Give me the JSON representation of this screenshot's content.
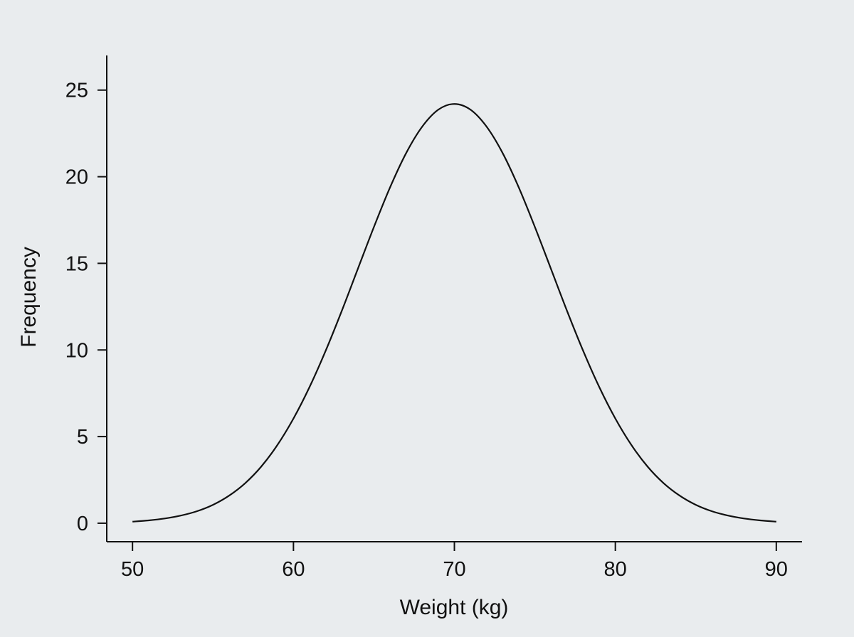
{
  "chart_data": {
    "type": "line",
    "title": "",
    "xlabel": "Weight (kg)",
    "ylabel": "Frequency",
    "xlim": [
      48.4,
      91.6
    ],
    "ylim": [
      -1.07,
      27.0
    ],
    "xticks": [
      50,
      60,
      70,
      80,
      90
    ],
    "yticks": [
      0,
      5,
      10,
      15,
      20,
      25
    ],
    "grid": false,
    "legend": "none",
    "series": [
      {
        "name": "Frequency",
        "color": "#111111",
        "x": [
          50,
          51,
          52,
          53,
          54,
          55,
          56,
          57,
          58,
          59,
          60,
          61,
          62,
          63,
          64,
          65,
          66,
          67,
          68,
          69,
          70,
          71,
          72,
          73,
          74,
          75,
          76,
          77,
          78,
          79,
          80,
          81,
          82,
          83,
          84,
          85,
          86,
          87,
          88,
          89,
          90
        ],
        "y": [
          0.09,
          0.16,
          0.27,
          0.44,
          0.69,
          1.06,
          1.59,
          2.31,
          3.27,
          4.51,
          6.04,
          7.86,
          9.95,
          12.25,
          14.68,
          17.1,
          19.38,
          21.36,
          22.89,
          23.87,
          24.2,
          23.87,
          22.89,
          21.36,
          19.38,
          17.1,
          14.68,
          12.25,
          9.95,
          7.86,
          6.04,
          4.51,
          3.27,
          2.31,
          1.59,
          1.06,
          0.69,
          0.44,
          0.27,
          0.16,
          0.09
        ]
      }
    ]
  }
}
